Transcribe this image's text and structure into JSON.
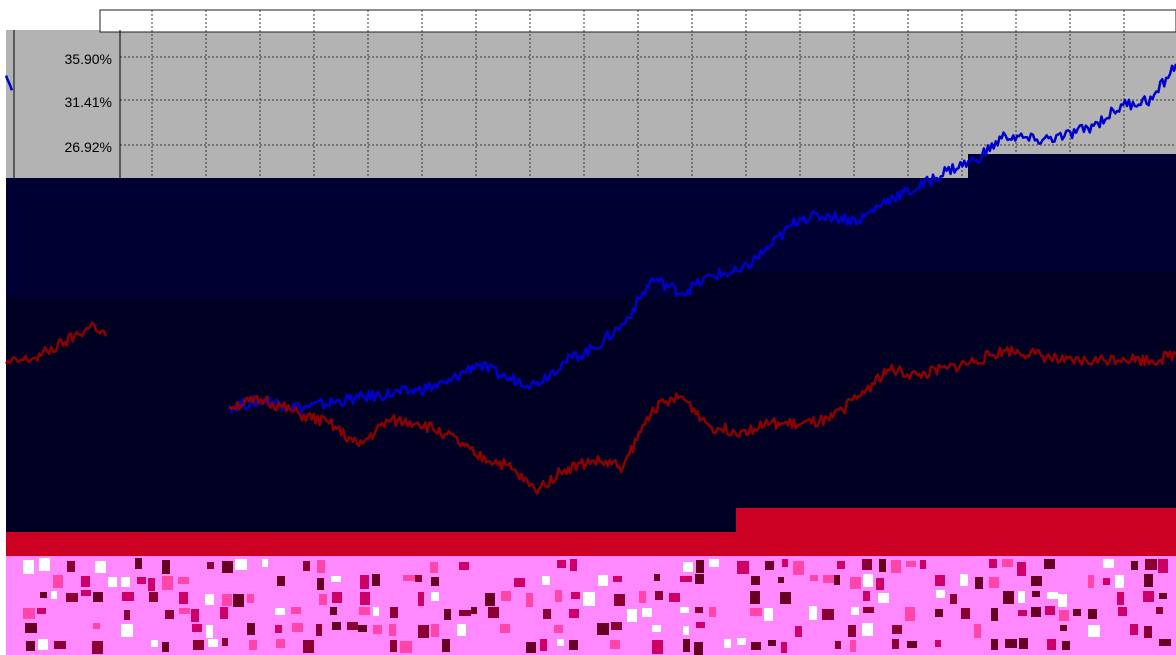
{
  "chart_data": {
    "type": "line",
    "title": "",
    "xlabel": "",
    "ylabel": "",
    "y_tick_labels": [
      "35.90%",
      "31.41%",
      "26.92%"
    ],
    "y_ticks": [
      35.9,
      31.41,
      26.92
    ],
    "ylim": [
      -12.0,
      36.5
    ],
    "grid": true,
    "legend": "none",
    "colors": {
      "plot_bg": "#b3b3b3",
      "dark_band": "#000033",
      "darker_band": "#000022",
      "grid": "#333333",
      "series_blue": "#0000cc",
      "series_red": "#8b0000",
      "noise_red": "#cc0022",
      "noise_pink": "#ff88ff"
    },
    "n_points": 200,
    "series": [
      {
        "color": "#0000cc",
        "segments": [
          {
            "from": 0,
            "to": 1,
            "points": [
              [
                0,
                34.0
              ],
              [
                1,
                32.5
              ]
            ]
          },
          {
            "from": 38,
            "to": 199,
            "points": [
              [
                38,
                0.2
              ],
              [
                44,
                0.9
              ],
              [
                50,
                0.1
              ],
              [
                60,
                1.1
              ],
              [
                70,
                1.9
              ],
              [
                75,
                2.6
              ],
              [
                80,
                4.6
              ],
              [
                85,
                3.2
              ],
              [
                90,
                2.5
              ],
              [
                95,
                4.8
              ],
              [
                100,
                6.2
              ],
              [
                105,
                8.6
              ],
              [
                110,
                13.3
              ],
              [
                115,
                11.8
              ],
              [
                120,
                13.6
              ],
              [
                125,
                14.0
              ],
              [
                130,
                16.6
              ],
              [
                135,
                19.5
              ],
              [
                140,
                19.7
              ],
              [
                145,
                19.2
              ],
              [
                150,
                21.4
              ],
              [
                155,
                22.5
              ],
              [
                160,
                24.3
              ],
              [
                165,
                25.4
              ],
              [
                170,
                27.9
              ],
              [
                175,
                27.4
              ],
              [
                180,
                27.8
              ],
              [
                185,
                28.9
              ],
              [
                190,
                31.0
              ],
              [
                195,
                31.6
              ],
              [
                199,
                35.2
              ]
            ]
          }
        ]
      },
      {
        "color": "#8b0000",
        "segments": [
          {
            "from": 0,
            "to": 17,
            "points": [
              [
                0,
                4.6
              ],
              [
                5,
                5.2
              ],
              [
                10,
                6.8
              ],
              [
                15,
                8.6
              ],
              [
                17,
                7.4
              ]
            ]
          },
          {
            "from": 38,
            "to": 199,
            "points": [
              [
                38,
                0.3
              ],
              [
                44,
                0.9
              ],
              [
                50,
                -0.6
              ],
              [
                55,
                -1.5
              ],
              [
                60,
                -3.8
              ],
              [
                65,
                -1.2
              ],
              [
                70,
                -1.4
              ],
              [
                75,
                -2.6
              ],
              [
                80,
                -4.8
              ],
              [
                85,
                -5.7
              ],
              [
                90,
                -8.3
              ],
              [
                95,
                -6.2
              ],
              [
                100,
                -5.3
              ],
              [
                105,
                -5.9
              ],
              [
                110,
                0.1
              ],
              [
                115,
                1.2
              ],
              [
                120,
                -1.9
              ],
              [
                125,
                -2.3
              ],
              [
                130,
                -1.5
              ],
              [
                135,
                -1.6
              ],
              [
                140,
                -1.2
              ],
              [
                145,
                1.3
              ],
              [
                150,
                4.0
              ],
              [
                155,
                3.4
              ],
              [
                160,
                4.1
              ],
              [
                165,
                4.9
              ],
              [
                170,
                6.0
              ],
              [
                175,
                5.6
              ],
              [
                180,
                4.8
              ],
              [
                185,
                4.9
              ],
              [
                190,
                5.2
              ],
              [
                195,
                4.9
              ],
              [
                199,
                5.6
              ]
            ]
          }
        ]
      }
    ]
  }
}
